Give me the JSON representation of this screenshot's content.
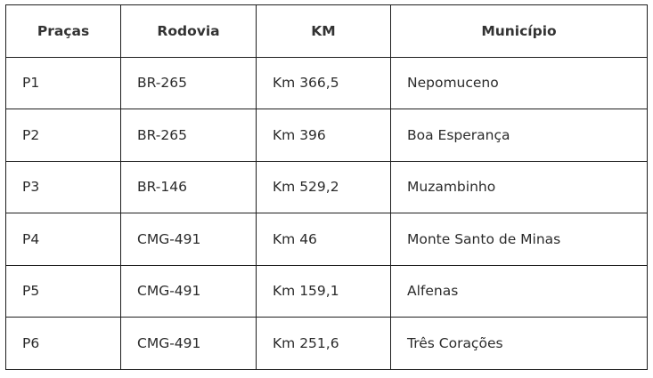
{
  "table": {
    "headers": [
      "Praças",
      "Rodovia",
      "KM",
      "Município"
    ],
    "rows": [
      [
        "P1",
        "BR-265",
        "Km 366,5",
        "Nepomuceno"
      ],
      [
        "P2",
        "BR-265",
        "Km 396",
        "Boa Esperança"
      ],
      [
        "P3",
        "BR-146",
        "Km 529,2",
        "Muzambinho"
      ],
      [
        "P4",
        "CMG-491",
        "Km 46",
        "Monte Santo de Minas"
      ],
      [
        "P5",
        "CMG-491",
        "Km 159,1",
        "Alfenas"
      ],
      [
        "P6",
        "CMG-491",
        "Km 251,6",
        "Três Corações"
      ]
    ]
  }
}
